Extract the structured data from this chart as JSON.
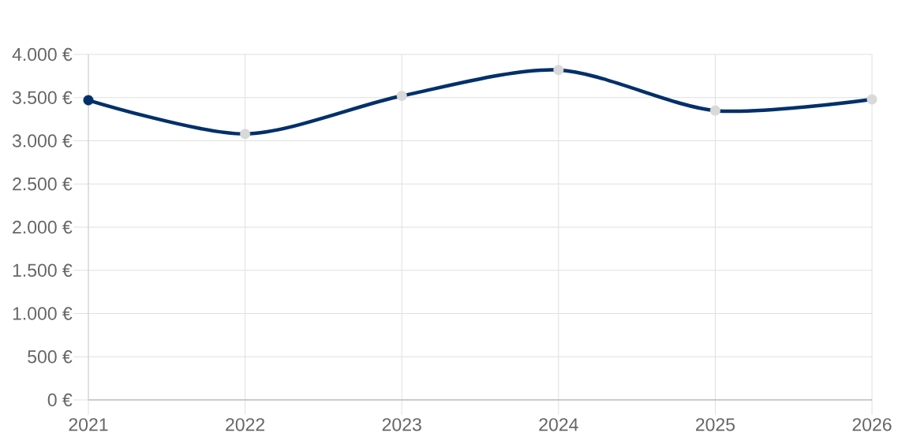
{
  "chart_data": {
    "type": "line",
    "categories": [
      "2021",
      "2022",
      "2023",
      "2024",
      "2025",
      "2026"
    ],
    "series": [
      {
        "color": "#00306a",
        "values": [
          3470,
          3080,
          3520,
          3820,
          3350,
          3480
        ],
        "colors": [
          "#00306a",
          "#d9d9d9",
          "#d9d9d9",
          "#d9d9d9",
          "#d9d9d9",
          "#d9d9d9"
        ]
      }
    ],
    "ylim": [
      0,
      4000
    ],
    "yticks": [
      {
        "value": 0,
        "label": "0 €"
      },
      {
        "value": 500,
        "label": "500 €"
      },
      {
        "value": 1000,
        "label": "1.000 €"
      },
      {
        "value": 1500,
        "label": "1.500 €"
      },
      {
        "value": 2000,
        "label": "2.000 €"
      },
      {
        "value": 2500,
        "label": "2.500 €"
      },
      {
        "value": 3000,
        "label": "3.000 €"
      },
      {
        "value": 3500,
        "label": "3.500 €"
      },
      {
        "value": 4000,
        "label": "4.000 €"
      }
    ],
    "grid": true,
    "marker": "circle",
    "line_style": "solid"
  }
}
